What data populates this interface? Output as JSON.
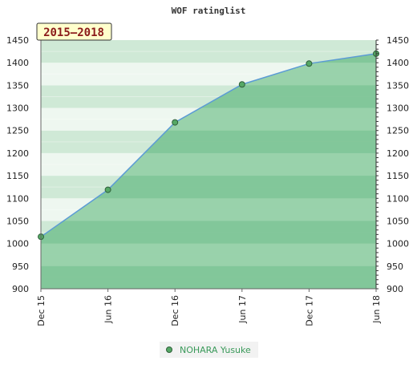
{
  "chart_data": {
    "type": "area",
    "title": "WOF ratinglist",
    "period_label": "2015–2018",
    "categories": [
      "Dec 15",
      "Jun 16",
      "Dec 16",
      "Jun 17",
      "Dec 17",
      "Jun 18"
    ],
    "series": [
      {
        "name": "NOHARA Yusuke",
        "values": [
          1015,
          1119,
          1268,
          1352,
          1398,
          1420
        ]
      }
    ],
    "ylim": [
      900,
      1450
    ],
    "yticks": [
      900,
      950,
      1000,
      1050,
      1100,
      1150,
      1200,
      1250,
      1300,
      1350,
      1400,
      1450
    ],
    "grid": true,
    "legend": "bottom-center",
    "colors": {
      "area_dark": "#7cc395",
      "area_light": "#a6d8b5",
      "band_dark": "#cfe9d6",
      "band_light": "#eef7f0",
      "line": "#5b9bd5",
      "marker": "#55a865",
      "badge_bg": "#ffffcc",
      "legend_bg": "#f2f2f2"
    }
  }
}
